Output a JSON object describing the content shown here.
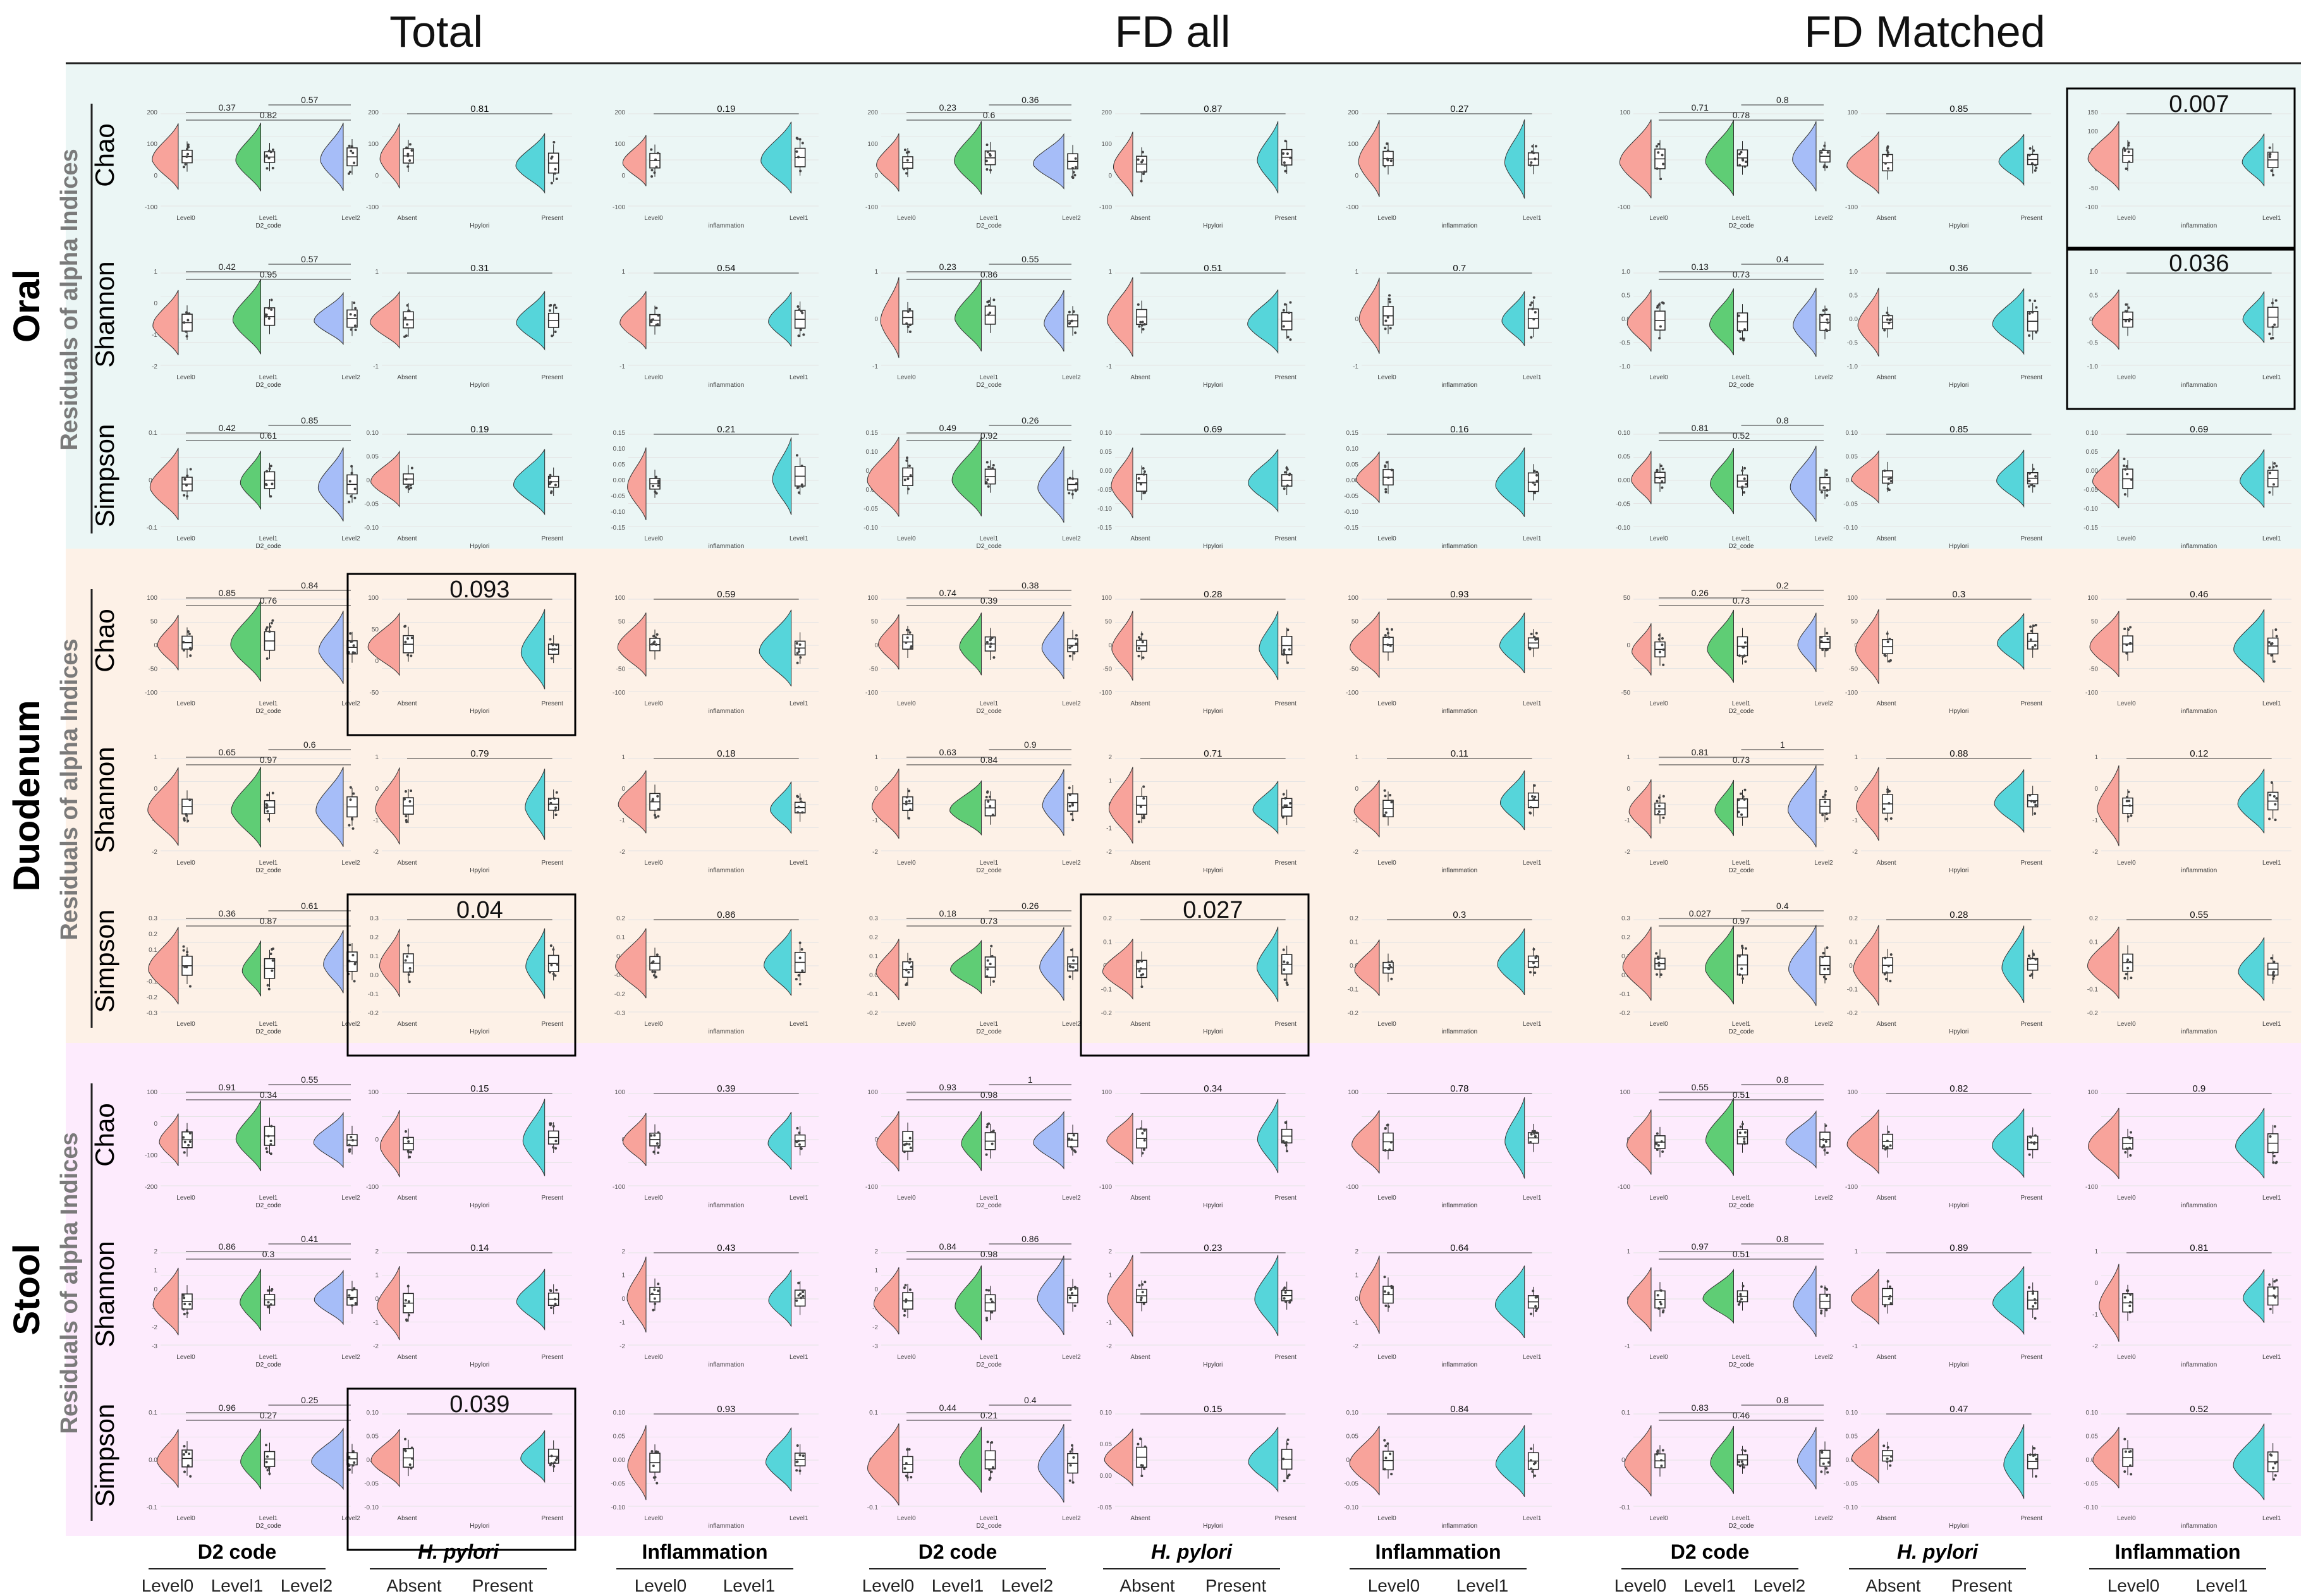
{
  "headers": {
    "total": "Total",
    "fd_all": "FD all",
    "fd_matched": "FD Matched"
  },
  "sites": [
    {
      "name": "Oral",
      "ylabel": "Residuals of alpha Indices",
      "bg": "#ebf6f5"
    },
    {
      "name": "Duodenum",
      "ylabel": "Residuals of alpha Indices",
      "bg": "#fdf1e7"
    },
    {
      "name": "Stool",
      "ylabel": "Residuals of alpha Indices",
      "bg": "#fdebfd"
    }
  ],
  "indices": [
    "Chao",
    "Shannon",
    "Simpson"
  ],
  "colors": {
    "level0": "#f8a39b",
    "level1": "#5fcd75",
    "level2": "#a6bdf8",
    "present": "#56d5da"
  },
  "chart_data": {
    "type": "raincloud",
    "variables": [
      {
        "key": "d2",
        "title": "D2 code",
        "xlabel": "D2_code",
        "categories": [
          "Level0",
          "Level1",
          "Level2"
        ]
      },
      {
        "key": "hp",
        "title": "H. pylori",
        "xlabel": "Hpylori",
        "categories": [
          "Absent",
          "Present"
        ]
      },
      {
        "key": "inf",
        "title": "Inflammation",
        "xlabel": "inflammation",
        "categories": [
          "Level0",
          "Level1"
        ]
      }
    ],
    "yticks": {
      "Oral": {
        "Chao": [
          [
            "200",
            "100",
            "0",
            "-100"
          ],
          [
            "200",
            "100",
            "0",
            "-100"
          ],
          [
            "200",
            "100",
            "0",
            "-100"
          ],
          [
            "200",
            "100",
            "0",
            "-100"
          ],
          [
            "200",
            "100",
            "0",
            "-100"
          ],
          [
            "200",
            "100",
            "0",
            "-100"
          ],
          [
            "100",
            "0",
            "-100"
          ],
          [
            "100",
            "0",
            "-100"
          ],
          [
            "150",
            "100",
            "50",
            "0",
            "-50",
            "-100"
          ]
        ],
        "Shannon": [
          [
            "1",
            "0",
            "-1",
            "-2"
          ],
          [
            "1",
            "0",
            "-1"
          ],
          [
            "1",
            "0",
            "-1"
          ],
          [
            "1",
            "0",
            "-1"
          ],
          [
            "1",
            "0",
            "-1"
          ],
          [
            "1",
            "0",
            "-1"
          ],
          [
            "1.0",
            "0.5",
            "0.0",
            "-0.5",
            "-1.0"
          ],
          [
            "1.0",
            "0.5",
            "0.0",
            "-0.5",
            "-1.0"
          ],
          [
            "1.0",
            "0.5",
            "0.0",
            "-0.5",
            "-1.0"
          ]
        ],
        "Simpson": [
          [
            "0.1",
            "0.0",
            "-0.1"
          ],
          [
            "0.10",
            "0.05",
            "0.00",
            "-0.05",
            "-0.10"
          ],
          [
            "0.15",
            "0.10",
            "0.05",
            "0.00",
            "-0.05",
            "-0.10",
            "-0.15"
          ],
          [
            "0.15",
            "0.10",
            "0.05",
            "0.00",
            "-0.05",
            "-0.10"
          ],
          [
            "0.10",
            "0.05",
            "0.00",
            "-0.05",
            "-0.10",
            "-0.15"
          ],
          [
            "0.15",
            "0.10",
            "0.05",
            "0.00",
            "-0.05",
            "-0.10",
            "-0.15"
          ],
          [
            "0.10",
            "0.05",
            "0.00",
            "-0.05",
            "-0.10"
          ],
          [
            "0.10",
            "0.05",
            "0.00",
            "-0.05",
            "-0.10"
          ],
          [
            "0.10",
            "0.05",
            "0.00",
            "-0.05",
            "-0.10",
            "-0.15"
          ]
        ]
      },
      "Duodenum": {
        "Chao": [
          [
            "100",
            "50",
            "0",
            "-50",
            "-100"
          ],
          [
            "100",
            "50",
            "0",
            "-50"
          ],
          [
            "100",
            "50",
            "0",
            "-50",
            "-100"
          ],
          [
            "100",
            "50",
            "0",
            "-50",
            "-100"
          ],
          [
            "100",
            "50",
            "0",
            "-50",
            "-100"
          ],
          [
            "100",
            "50",
            "0",
            "-50",
            "-100"
          ],
          [
            "50",
            "0",
            "-50"
          ],
          [
            "100",
            "50",
            "0",
            "-50",
            "-100"
          ],
          [
            "100",
            "50",
            "0",
            "-50",
            "-100"
          ]
        ],
        "Shannon": [
          [
            "1",
            "0",
            "-1",
            "-2"
          ],
          [
            "1",
            "0",
            "-1",
            "-2"
          ],
          [
            "1",
            "0",
            "-1",
            "-2"
          ],
          [
            "1",
            "0",
            "-1",
            "-2"
          ],
          [
            "2",
            "1",
            "0",
            "-1",
            "-2"
          ],
          [
            "1",
            "0",
            "-1",
            "-2"
          ],
          [
            "1",
            "0",
            "-1",
            "-2"
          ],
          [
            "1",
            "0",
            "-1",
            "-2"
          ],
          [
            "1",
            "0",
            "-1",
            "-2"
          ]
        ],
        "Simpson": [
          [
            "0.3",
            "0.2",
            "0.1",
            "0.0",
            "-0.1",
            "-0.2",
            "-0.3"
          ],
          [
            "0.3",
            "0.2",
            "0.1",
            "0.0",
            "-0.1",
            "-0.2"
          ],
          [
            "0.2",
            "0.1",
            "0.0",
            "-0.1",
            "-0.2",
            "-0.3"
          ],
          [
            "0.3",
            "0.2",
            "0.1",
            "0.0",
            "-0.1",
            "-0.2"
          ],
          [
            "0.2",
            "0.1",
            "0.0",
            "-0.1",
            "-0.2"
          ],
          [
            "0.2",
            "0.1",
            "0.0",
            "-0.1",
            "-0.2"
          ],
          [
            "0.3",
            "0.2",
            "0.1",
            "0.0",
            "-0.1",
            "-0.2"
          ],
          [
            "0.2",
            "0.1",
            "0.0",
            "-0.1",
            "-0.2"
          ],
          [
            "0.2",
            "0.1",
            "0.0",
            "-0.1",
            "-0.2"
          ]
        ]
      },
      "Stool": {
        "Chao": [
          [
            "100",
            "0",
            "-100",
            "-200"
          ],
          [
            "100",
            "0",
            "-100"
          ],
          [
            "100",
            "0",
            "-100"
          ],
          [
            "100",
            "0",
            "-100"
          ],
          [
            "100",
            "0",
            "-100"
          ],
          [
            "100",
            "0",
            "-100"
          ],
          [
            "100",
            "0",
            "-100"
          ],
          [
            "100",
            "0",
            "-100"
          ],
          [
            "100",
            "0",
            "-100"
          ]
        ],
        "Shannon": [
          [
            "2",
            "1",
            "0",
            "-1",
            "-2",
            "-3"
          ],
          [
            "2",
            "1",
            "0",
            "-1",
            "-2"
          ],
          [
            "2",
            "1",
            "0",
            "-1",
            "-2"
          ],
          [
            "2",
            "1",
            "0",
            "-1",
            "-2",
            "-3"
          ],
          [
            "2",
            "1",
            "0",
            "-1",
            "-2"
          ],
          [
            "2",
            "1",
            "0",
            "-1",
            "-2"
          ],
          [
            "1",
            "0",
            "-1"
          ],
          [
            "1",
            "0",
            "-1"
          ],
          [
            "1",
            "0",
            "-1",
            "-2"
          ]
        ],
        "Simpson": [
          [
            "0.1",
            "0.0",
            "-0.1"
          ],
          [
            "0.10",
            "0.05",
            "0.00",
            "-0.05",
            "-0.10"
          ],
          [
            "0.10",
            "0.05",
            "0.00",
            "-0.05",
            "-0.10"
          ],
          [
            "0.1",
            "0.0",
            "-0.1"
          ],
          [
            "0.10",
            "0.05",
            "0.00",
            "-0.05"
          ],
          [
            "0.10",
            "0.05",
            "0.00",
            "-0.05",
            "-0.10"
          ],
          [
            "0.1",
            "0.0",
            "-0.1"
          ],
          [
            "0.10",
            "0.05",
            "0.00",
            "-0.05",
            "-0.10"
          ],
          [
            "0.10",
            "0.05",
            "0.00",
            "-0.05",
            "-0.10"
          ]
        ]
      }
    },
    "pvalues": {
      "Oral": {
        "Chao": [
          [
            "0.37",
            "0.57",
            "0.82"
          ],
          [
            "0.81"
          ],
          [
            "0.19"
          ],
          [
            "0.23",
            "0.36",
            "0.6"
          ],
          [
            "0.87"
          ],
          [
            "0.27"
          ],
          [
            "0.71",
            "0.8",
            "0.78"
          ],
          [
            "0.85"
          ],
          [
            "0.007"
          ]
        ],
        "Shannon": [
          [
            "0.42",
            "0.57",
            "0.95"
          ],
          [
            "0.31"
          ],
          [
            "0.54"
          ],
          [
            "0.23",
            "0.55",
            "0.86"
          ],
          [
            "0.51"
          ],
          [
            "0.7"
          ],
          [
            "0.13",
            "0.4",
            "0.73"
          ],
          [
            "0.36"
          ],
          [
            "0.036"
          ]
        ],
        "Simpson": [
          [
            "0.42",
            "0.85",
            "0.61"
          ],
          [
            "0.19"
          ],
          [
            "0.21"
          ],
          [
            "0.49",
            "0.26",
            "0.92"
          ],
          [
            "0.69"
          ],
          [
            "0.16"
          ],
          [
            "0.81",
            "0.8",
            "0.52"
          ],
          [
            "0.85"
          ],
          [
            "0.69"
          ]
        ]
      },
      "Duodenum": {
        "Chao": [
          [
            "0.85",
            "0.84",
            "0.76"
          ],
          [
            "0.093"
          ],
          [
            "0.59"
          ],
          [
            "0.74",
            "0.38",
            "0.39"
          ],
          [
            "0.28"
          ],
          [
            "0.93"
          ],
          [
            "0.26",
            "0.2",
            "0.73"
          ],
          [
            "0.3"
          ],
          [
            "0.46"
          ]
        ],
        "Shannon": [
          [
            "0.65",
            "0.6",
            "0.97"
          ],
          [
            "0.79"
          ],
          [
            "0.18"
          ],
          [
            "0.63",
            "0.9",
            "0.84"
          ],
          [
            "0.71"
          ],
          [
            "0.11"
          ],
          [
            "0.81",
            "1",
            "0.73"
          ],
          [
            "0.88"
          ],
          [
            "0.12"
          ]
        ],
        "Simpson": [
          [
            "0.36",
            "0.61",
            "0.87"
          ],
          [
            "0.04"
          ],
          [
            "0.86"
          ],
          [
            "0.18",
            "0.26",
            "0.73"
          ],
          [
            "0.027"
          ],
          [
            "0.3"
          ],
          [
            "0.027",
            "0.4",
            "0.97"
          ],
          [
            "0.28"
          ],
          [
            "0.55"
          ]
        ]
      },
      "Stool": {
        "Chao": [
          [
            "0.91",
            "0.55",
            "0.34"
          ],
          [
            "0.15"
          ],
          [
            "0.39"
          ],
          [
            "0.93",
            "1",
            "0.98"
          ],
          [
            "0.34"
          ],
          [
            "0.78"
          ],
          [
            "0.55",
            "0.8",
            "0.51"
          ],
          [
            "0.82"
          ],
          [
            "0.9"
          ]
        ],
        "Shannon": [
          [
            "0.86",
            "0.41",
            "0.3"
          ],
          [
            "0.14"
          ],
          [
            "0.43"
          ],
          [
            "0.84",
            "0.86",
            "0.98"
          ],
          [
            "0.23"
          ],
          [
            "0.64"
          ],
          [
            "0.97",
            "0.8",
            "0.51"
          ],
          [
            "0.89"
          ],
          [
            "0.81"
          ]
        ],
        "Simpson": [
          [
            "0.96",
            "0.25",
            "0.27"
          ],
          [
            "0.039"
          ],
          [
            "0.93"
          ],
          [
            "0.44",
            "0.4",
            "0.21"
          ],
          [
            "0.15"
          ],
          [
            "0.84"
          ],
          [
            "0.83",
            "0.8",
            "0.46"
          ],
          [
            "0.47"
          ],
          [
            "0.52"
          ]
        ]
      }
    },
    "highlighted_panels": [
      {
        "site": "Oral",
        "index": "Chao",
        "column": 9
      },
      {
        "site": "Oral",
        "index": "Shannon",
        "column": 9
      },
      {
        "site": "Duodenum",
        "index": "Chao",
        "column": 2
      },
      {
        "site": "Duodenum",
        "index": "Simpson",
        "column": 2
      },
      {
        "site": "Duodenum",
        "index": "Simpson",
        "column": 5
      },
      {
        "site": "Stool",
        "index": "Simpson",
        "column": 2
      }
    ]
  }
}
